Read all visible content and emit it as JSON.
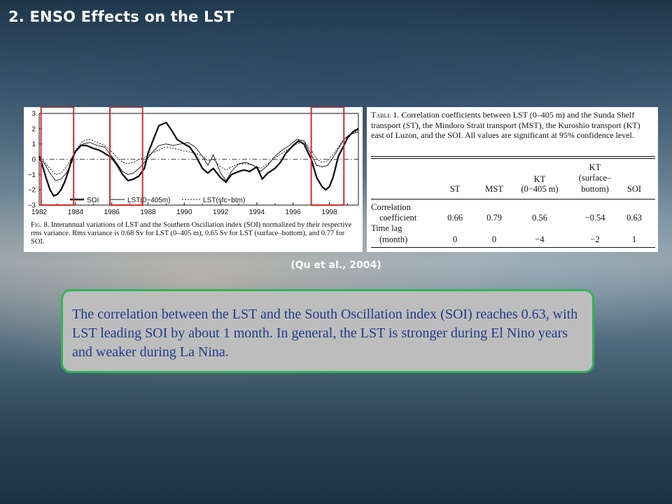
{
  "slide": {
    "title": "2. ENSO Effects on the LST",
    "citation": "(Qu et al., 2004)",
    "summary": "The correlation between the LST and the South Oscillation index (SOI) reaches 0.63, with LST leading SOI by about 1 month. In general, the LST is stronger during El Nino years and weaker during La Nina."
  },
  "colors": {
    "title_text": "#ffffff",
    "summary_text": "#1e3a8a",
    "summary_border": "#2fb457",
    "summary_fill": "#bdbdbd",
    "highlight_box": "#d42a2a"
  },
  "figure": {
    "legend": {
      "soi": "SOI",
      "lst_0_405": "LST(0−405m)",
      "lst_sfc_btm": "LST(sfc−btm)"
    },
    "caption_label": "Fig. 8.",
    "caption": "Interannual variations of LST and the Southern Oscillation index (SOI) normalized by their respective rms variance. Rms variance is 0.68 Sv for LST (0–405 m), 0.65 Sv for LST (surface–bottom), and 0.77 for SOI."
  },
  "chart_data": {
    "type": "line",
    "xlim": [
      1982,
      1999.6
    ],
    "ylim": [
      -3,
      3
    ],
    "x_ticks": [
      1982,
      1984,
      1986,
      1988,
      1990,
      1992,
      1994,
      1996,
      1998
    ],
    "y_ticks": [
      -3,
      -2,
      -1,
      0,
      1,
      2,
      3
    ],
    "highlight_ranges": [
      [
        1982.1,
        1983.9
      ],
      [
        1985.9,
        1987.7
      ],
      [
        1997.0,
        1998.8
      ]
    ],
    "series": [
      {
        "name": "SOI",
        "x": [
          1982,
          1982.2,
          1982.4,
          1982.6,
          1982.8,
          1983.0,
          1983.2,
          1983.4,
          1983.6,
          1983.8,
          1984.0,
          1984.3,
          1984.6,
          1985.0,
          1985.3,
          1985.6,
          1986.0,
          1986.3,
          1986.6,
          1986.9,
          1987.2,
          1987.5,
          1987.8,
          1988.0,
          1988.3,
          1988.6,
          1989.0,
          1989.3,
          1989.6,
          1990.0,
          1990.3,
          1990.6,
          1991.0,
          1991.3,
          1991.6,
          1992.0,
          1992.3,
          1992.6,
          1993.0,
          1993.3,
          1993.6,
          1994.0,
          1994.3,
          1994.6,
          1995.0,
          1995.3,
          1995.6,
          1996.0,
          1996.3,
          1996.6,
          1997.0,
          1997.3,
          1997.6,
          1997.8,
          1998.0,
          1998.2,
          1998.5,
          1998.8,
          1999.0,
          1999.3,
          1999.6
        ],
        "y": [
          0.2,
          -0.5,
          -1.3,
          -2.0,
          -2.4,
          -2.3,
          -2.0,
          -1.5,
          -0.8,
          0.0,
          0.5,
          0.9,
          0.9,
          0.7,
          0.6,
          0.4,
          0.1,
          -0.4,
          -1.0,
          -1.4,
          -1.3,
          -1.1,
          -0.6,
          0.4,
          1.3,
          2.2,
          2.4,
          1.9,
          1.3,
          1.0,
          0.8,
          0.3,
          -0.6,
          -0.9,
          -0.6,
          -1.2,
          -1.5,
          -1.0,
          -0.8,
          -0.7,
          -0.8,
          -0.5,
          -1.3,
          -0.9,
          -0.6,
          -0.2,
          0.4,
          0.9,
          1.2,
          1.0,
          0.0,
          -1.2,
          -1.8,
          -2.0,
          -1.8,
          -1.2,
          0.2,
          0.9,
          1.4,
          1.8,
          2.0
        ]
      },
      {
        "name": "LST(0−405m)",
        "x": [
          1982,
          1982.3,
          1982.6,
          1982.9,
          1983.2,
          1983.5,
          1983.8,
          1984.0,
          1984.4,
          1984.8,
          1985.2,
          1985.6,
          1986.0,
          1986.3,
          1986.6,
          1986.9,
          1987.2,
          1987.5,
          1987.8,
          1988.2,
          1988.6,
          1989.0,
          1989.4,
          1989.8,
          1990.2,
          1990.6,
          1991.0,
          1991.3,
          1991.6,
          1992.0,
          1992.3,
          1992.6,
          1993.0,
          1993.4,
          1993.8,
          1994.2,
          1994.6,
          1995.0,
          1995.4,
          1995.8,
          1996.2,
          1996.6,
          1997.0,
          1997.3,
          1997.6,
          1997.9,
          1998.2,
          1998.5,
          1998.8,
          1999.1,
          1999.6
        ],
        "y": [
          0.1,
          -0.3,
          -0.9,
          -1.4,
          -1.3,
          -0.9,
          -0.2,
          0.5,
          1.0,
          1.1,
          0.9,
          0.8,
          0.2,
          -0.3,
          -0.8,
          -1.0,
          -0.9,
          -0.6,
          -0.2,
          0.4,
          0.9,
          1.0,
          0.9,
          1.0,
          1.1,
          0.8,
          0.2,
          -0.4,
          0.3,
          -0.9,
          -1.4,
          -0.8,
          -0.3,
          -0.2,
          -0.4,
          -0.8,
          -0.4,
          0.2,
          0.6,
          0.9,
          1.3,
          1.2,
          0.3,
          -0.4,
          -0.5,
          -0.4,
          0.1,
          0.7,
          1.3,
          1.6,
          1.8
        ]
      },
      {
        "name": "LST(sfc−btm)",
        "x": [
          1982,
          1982.3,
          1982.6,
          1982.9,
          1983.2,
          1983.5,
          1983.8,
          1984.0,
          1984.4,
          1984.8,
          1985.2,
          1985.6,
          1986.0,
          1986.3,
          1986.6,
          1986.9,
          1987.2,
          1987.5,
          1987.8,
          1988.2,
          1988.6,
          1989.0,
          1989.4,
          1989.8,
          1990.2,
          1990.6,
          1991.0,
          1991.3,
          1991.6,
          1992.0,
          1992.3,
          1992.6,
          1993.0,
          1993.4,
          1993.8,
          1994.2,
          1994.6,
          1995.0,
          1995.4,
          1995.8,
          1996.2,
          1996.6,
          1997.0,
          1997.3,
          1997.6,
          1997.9,
          1998.2,
          1998.5,
          1998.8,
          1999.1,
          1999.6
        ],
        "y": [
          0.2,
          -0.2,
          -0.6,
          -1.0,
          -0.9,
          -0.5,
          0.1,
          0.6,
          1.2,
          1.3,
          1.1,
          0.9,
          0.5,
          0.1,
          -0.2,
          -0.3,
          -0.2,
          0.0,
          0.1,
          0.4,
          0.6,
          0.8,
          0.7,
          0.6,
          0.5,
          0.4,
          0.2,
          -0.1,
          0.0,
          -0.5,
          -0.7,
          -0.5,
          -0.3,
          -0.3,
          -0.4,
          -0.6,
          -0.3,
          0.1,
          0.4,
          0.7,
          1.0,
          1.2,
          0.6,
          0.0,
          -0.2,
          -0.1,
          0.3,
          0.8,
          1.3,
          1.6,
          1.9
        ]
      }
    ]
  },
  "table": {
    "caption_label": "Table 1.",
    "caption": "Correlation coefficients between LST (0–405 m) and the Sunda Shelf transport (ST), the Mindoro Strait transport (MST), the Kuroshio transport (KT) east of Luzon, and the SOI. All values are significant at 95% confidence level.",
    "headers": {
      "st": "ST",
      "mst": "MST",
      "kt1_line1": "KT",
      "kt1_line2": "(0−405 m)",
      "kt2_line1": "KT",
      "kt2_line2": "(surface–",
      "kt2_line3": "bottom)",
      "soi": "SOI"
    },
    "rows": [
      {
        "label_line1": "Correlation",
        "label_line2": "coefficient",
        "values": [
          "0.66",
          "0.79",
          "0.56",
          "−0.54",
          "0.63"
        ]
      },
      {
        "label_line1": "Time lag",
        "label_line2": "(month)",
        "values": [
          "0",
          "0",
          "−4",
          "−2",
          "1"
        ]
      }
    ]
  }
}
